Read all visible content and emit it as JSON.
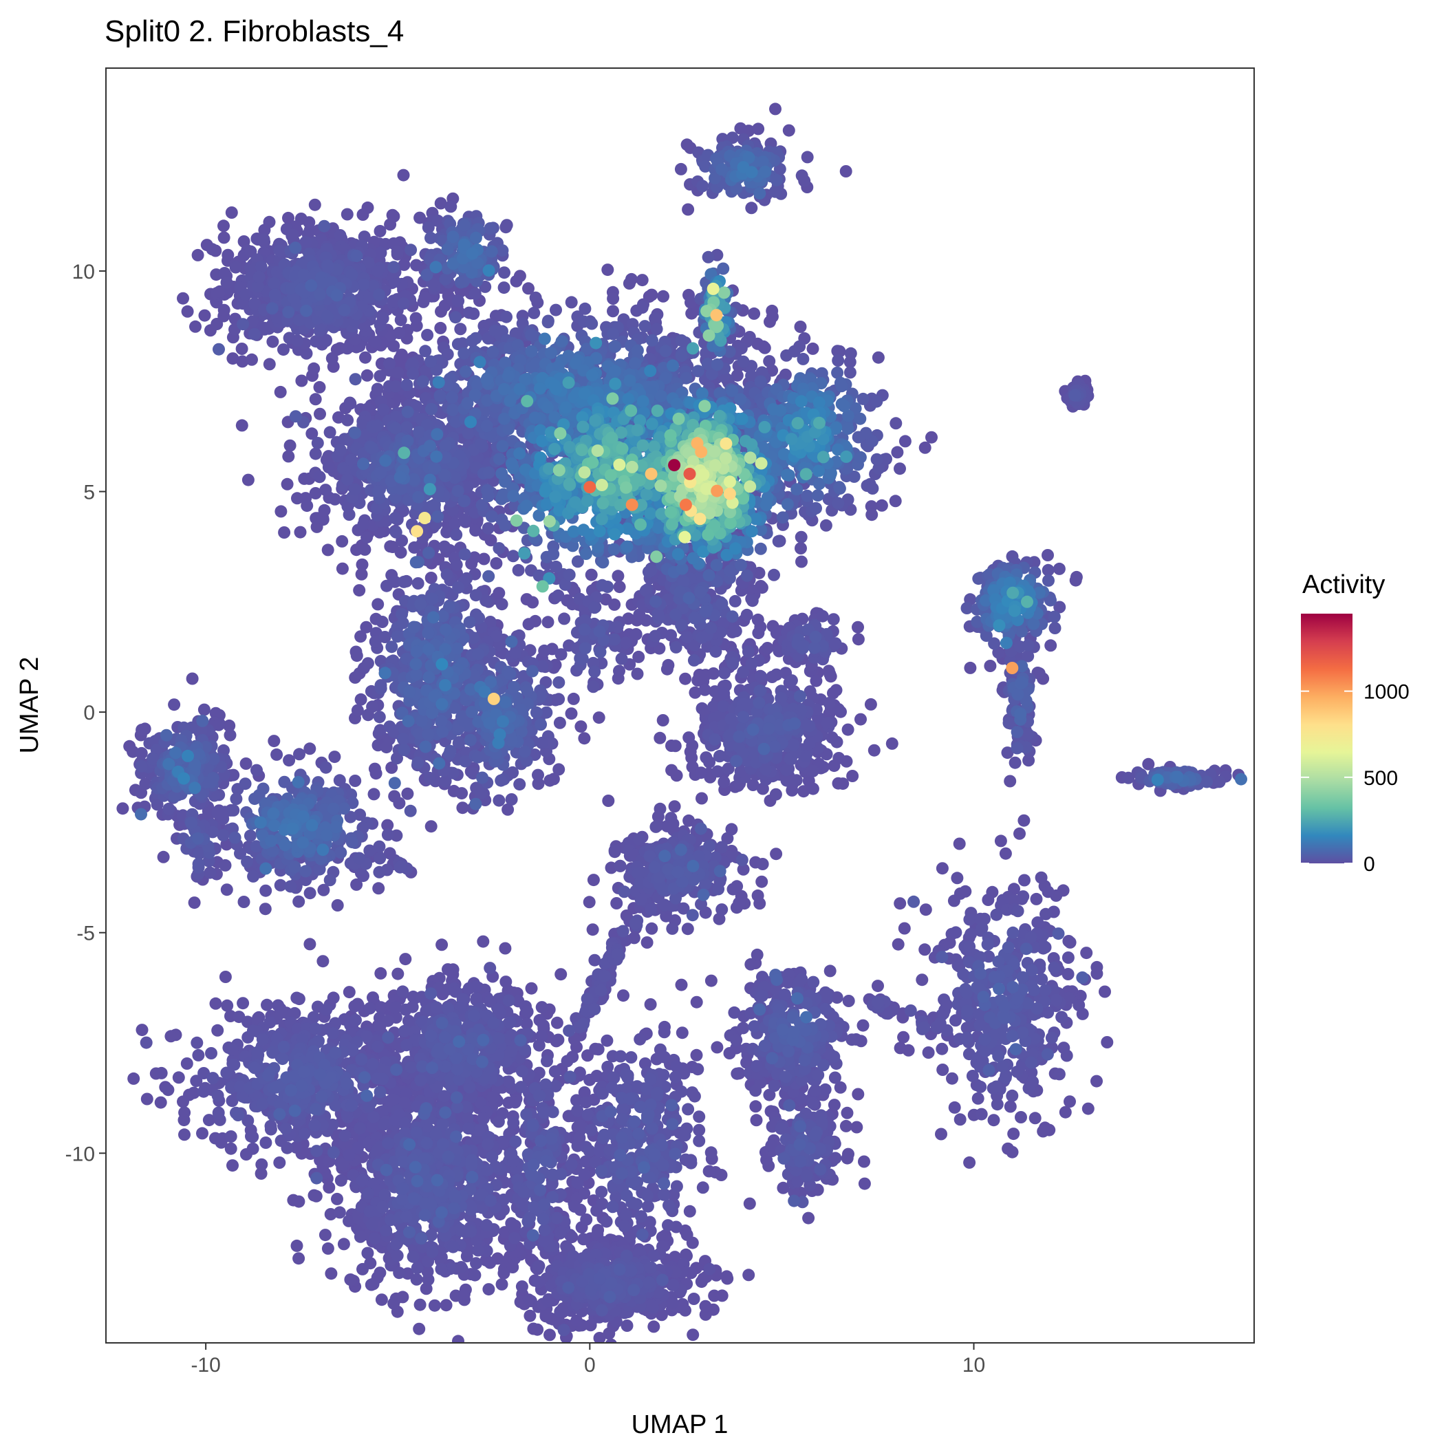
{
  "chart_data": {
    "type": "scatter",
    "title": "Split0 2. Fibroblasts_4",
    "xlabel": "UMAP 1",
    "ylabel": "UMAP 2",
    "xlim": [
      -12.6,
      17.3
    ],
    "ylim": [
      -14.3,
      14.6
    ],
    "x_ticks": [
      {
        "value": -10,
        "label": "-10"
      },
      {
        "value": 0,
        "label": "0"
      },
      {
        "value": 10,
        "label": "10"
      }
    ],
    "y_ticks": [
      {
        "value": 10,
        "label": "10"
      },
      {
        "value": 5,
        "label": "5"
      },
      {
        "value": 0,
        "label": "0"
      },
      {
        "value": -5,
        "label": "-5"
      },
      {
        "value": -10,
        "label": "-10"
      }
    ],
    "grid": false,
    "color_scale": {
      "name": "Spectral (reversed)",
      "min": 0,
      "max": 1450,
      "stops": [
        "#5E4FA2",
        "#3288BD",
        "#66C2A5",
        "#ABDDA4",
        "#E6F598",
        "#FEE08B",
        "#FDAE61",
        "#F46D43",
        "#D53E4F",
        "#9E0142"
      ]
    },
    "legend": {
      "title": "Activity",
      "position": "right",
      "ticks": [
        {
          "value": 0,
          "label": "0"
        },
        {
          "value": 500,
          "label": "500"
        },
        {
          "value": 1000,
          "label": "1000"
        }
      ]
    },
    "clusters": [
      {
        "cx": -7.0,
        "cy": 9.6,
        "sx": 1.3,
        "sy": 0.75,
        "n": 700,
        "base": 30
      },
      {
        "cx": -3.2,
        "cy": 10.4,
        "sx": 0.6,
        "sy": 0.5,
        "n": 140,
        "base": 80
      },
      {
        "cx": 4.0,
        "cy": 12.3,
        "sx": 0.7,
        "sy": 0.35,
        "n": 140,
        "base": 90
      },
      {
        "cx": -0.5,
        "cy": 7.3,
        "sx": 2.3,
        "sy": 0.9,
        "n": 900,
        "base": 90
      },
      {
        "cx": -4.6,
        "cy": 5.6,
        "sx": 1.3,
        "sy": 0.85,
        "n": 700,
        "base": 40
      },
      {
        "cx": 0.6,
        "cy": 5.5,
        "sx": 1.7,
        "sy": 1.2,
        "n": 900,
        "base": 230
      },
      {
        "cx": 3.0,
        "cy": 5.3,
        "sx": 1.0,
        "sy": 1.1,
        "n": 700,
        "base": 420
      },
      {
        "cx": 5.6,
        "cy": 6.3,
        "sx": 1.0,
        "sy": 0.9,
        "n": 400,
        "base": 140
      },
      {
        "cx": 3.3,
        "cy": 9.0,
        "sx": 0.2,
        "sy": 0.6,
        "n": 70,
        "base": 300
      },
      {
        "cx": -4.0,
        "cy": 0.9,
        "sx": 0.9,
        "sy": 1.3,
        "n": 500,
        "base": 60
      },
      {
        "cx": -2.4,
        "cy": 0.0,
        "sx": 0.8,
        "sy": 1.0,
        "n": 300,
        "base": 60
      },
      {
        "cx": 0.1,
        "cy": 1.6,
        "sx": 0.5,
        "sy": 0.7,
        "n": 70,
        "base": 30
      },
      {
        "cx": 4.6,
        "cy": -0.4,
        "sx": 1.0,
        "sy": 0.7,
        "n": 400,
        "base": 30
      },
      {
        "cx": 2.7,
        "cy": 2.5,
        "sx": 0.9,
        "sy": 0.7,
        "n": 200,
        "base": 30
      },
      {
        "cx": 5.8,
        "cy": 1.6,
        "sx": 0.5,
        "sy": 0.3,
        "n": 70,
        "base": 30
      },
      {
        "cx": -10.5,
        "cy": -1.3,
        "sx": 0.6,
        "sy": 0.6,
        "n": 250,
        "base": 60
      },
      {
        "cx": -7.6,
        "cy": -2.6,
        "sx": 1.1,
        "sy": 0.7,
        "n": 300,
        "base": 80
      },
      {
        "cx": -10.2,
        "cy": -2.9,
        "sx": 0.3,
        "sy": 0.5,
        "n": 40,
        "base": 40
      },
      {
        "cx": 2.3,
        "cy": -3.6,
        "sx": 0.9,
        "sy": 0.6,
        "n": 250,
        "base": 30
      },
      {
        "cx": 11.0,
        "cy": 2.5,
        "sx": 0.6,
        "sy": 0.5,
        "n": 170,
        "base": 140
      },
      {
        "cx": 11.2,
        "cy": 0.4,
        "sx": 0.2,
        "sy": 0.9,
        "n": 70,
        "base": 60
      },
      {
        "cx": 12.7,
        "cy": 7.2,
        "sx": 0.15,
        "sy": 0.15,
        "n": 40,
        "base": 30
      },
      {
        "cx": 15.3,
        "cy": -1.5,
        "sx": 0.6,
        "sy": 0.12,
        "n": 70,
        "base": 70
      },
      {
        "cx": 10.8,
        "cy": -6.5,
        "sx": 1.0,
        "sy": 1.3,
        "n": 400,
        "base": 30
      },
      {
        "cx": 5.3,
        "cy": -7.3,
        "sx": 0.8,
        "sy": 0.8,
        "n": 260,
        "base": 40
      },
      {
        "cx": 5.6,
        "cy": -9.8,
        "sx": 0.5,
        "sy": 0.6,
        "n": 160,
        "base": 30
      },
      {
        "cx": -7.3,
        "cy": -8.3,
        "sx": 1.6,
        "sy": 0.9,
        "n": 600,
        "base": 30
      },
      {
        "cx": -4.1,
        "cy": -10.6,
        "sx": 1.3,
        "sy": 1.2,
        "n": 800,
        "base": 30
      },
      {
        "cx": -3.4,
        "cy": -7.6,
        "sx": 1.1,
        "sy": 0.8,
        "n": 500,
        "base": 30
      },
      {
        "cx": 0.5,
        "cy": -12.9,
        "sx": 1.1,
        "sy": 0.5,
        "n": 500,
        "base": 25
      },
      {
        "cx": 1.3,
        "cy": -9.8,
        "sx": 0.9,
        "sy": 1.3,
        "n": 350,
        "base": 30
      },
      {
        "cx": -1.3,
        "cy": -10.2,
        "sx": 0.6,
        "sy": 1.4,
        "n": 200,
        "base": 30
      }
    ],
    "trails": [
      {
        "from": [
          -0.4,
          -7.3
        ],
        "to": [
          1.3,
          -4.3
        ],
        "n": 70,
        "spread": 0.12
      },
      {
        "from": [
          1.3,
          -4.3
        ],
        "to": [
          2.6,
          -3.0
        ],
        "n": 40,
        "spread": 0.15
      },
      {
        "from": [
          1.8,
          3.2
        ],
        "to": [
          4.2,
          0.6
        ],
        "n": 70,
        "spread": 0.25
      },
      {
        "from": [
          -8.8,
          -3.1
        ],
        "to": [
          -4.5,
          -3.6
        ],
        "n": 40,
        "spread": 0.08
      },
      {
        "from": [
          7.3,
          -6.6
        ],
        "to": [
          9.5,
          -7.3
        ],
        "n": 30,
        "spread": 0.08
      },
      {
        "from": [
          11.0,
          1.5
        ],
        "to": [
          11.3,
          -0.9
        ],
        "n": 40,
        "spread": 0.08
      }
    ],
    "highlights": [
      {
        "x": 2.2,
        "y": 5.6,
        "v": 1450
      },
      {
        "x": 2.6,
        "y": 5.4,
        "v": 1200
      },
      {
        "x": 0.0,
        "y": 5.1,
        "v": 1150
      },
      {
        "x": 1.1,
        "y": 4.7,
        "v": 1050
      },
      {
        "x": 2.5,
        "y": 4.7,
        "v": 1100
      },
      {
        "x": 11.0,
        "y": 1.0,
        "v": 1000
      },
      {
        "x": 3.3,
        "y": 9.0,
        "v": 900
      },
      {
        "x": -2.5,
        "y": 0.3,
        "v": 850
      },
      {
        "x": 2.9,
        "y": 5.9,
        "v": 950
      },
      {
        "x": -4.5,
        "y": 4.1,
        "v": 800
      },
      {
        "x": -4.3,
        "y": 4.4,
        "v": 750
      },
      {
        "x": 1.6,
        "y": 5.4,
        "v": 900
      }
    ]
  }
}
